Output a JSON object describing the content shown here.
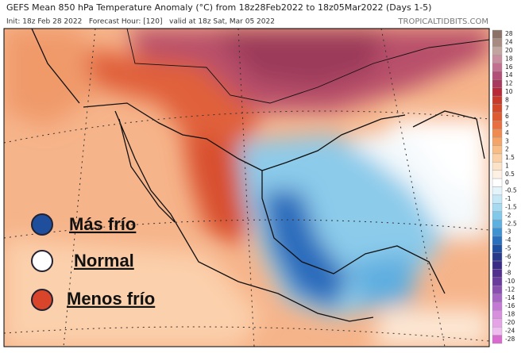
{
  "header": {
    "title": "GEFS Mean 850 hPa Temperature Anomaly (°C) from 18z28Feb2022 to 18z05Mar2022 (Days 1-5)",
    "subtitle": "Init: 18z Feb 28 2022   Forecast Hour: [120]   valid at 18z Sat, Mar 05 2022",
    "site": "TROPICALTIDBITS.COM"
  },
  "colorbar": {
    "ticks": [
      28,
      24,
      20,
      18,
      16,
      14,
      12,
      10,
      8,
      7,
      6,
      5,
      4,
      3,
      2,
      1.5,
      1,
      0.5,
      0,
      -0.5,
      -1,
      -1.5,
      -2,
      -2.5,
      -3,
      -4,
      -5,
      -6,
      -7,
      -8,
      -10,
      -12,
      -14,
      -16,
      -18,
      -20,
      -24,
      -28
    ],
    "colors": [
      "#8a7268",
      "#a88b80",
      "#c3a5a0",
      "#c98fa0",
      "#c27090",
      "#b25078",
      "#a83a60",
      "#b82a38",
      "#c83a2a",
      "#d4482a",
      "#de5a30",
      "#e87040",
      "#ef8a50",
      "#f4a466",
      "#f8bd85",
      "#fad0a4",
      "#fce2c6",
      "#fef1e4",
      "#ffffff",
      "#e4f4fb",
      "#c6e8f6",
      "#a6daf1",
      "#82c8ea",
      "#5eb0e0",
      "#3e92d2",
      "#2a70bc",
      "#1f50a0",
      "#2a3a8a",
      "#3a2c86",
      "#52308e",
      "#6a3c9c",
      "#8a50b0",
      "#a866c4",
      "#c47ad4",
      "#d890de",
      "#e4a4e6",
      "#eebcee",
      "#d86ad0"
    ]
  },
  "legend": [
    "Más frío",
    "Normal",
    "Menos frío"
  ]
}
